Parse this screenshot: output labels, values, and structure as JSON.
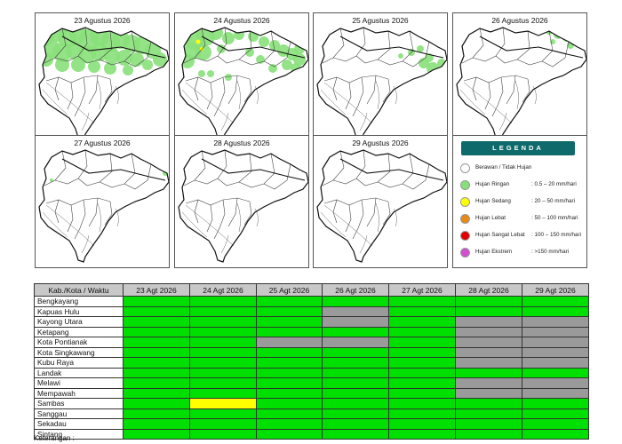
{
  "maps": [
    {
      "date": "23 Agustus 2026"
    },
    {
      "date": "24 Agustus 2026"
    },
    {
      "date": "25 Agustus 2026"
    },
    {
      "date": "26 Agustus 2026"
    },
    {
      "date": "27 Agustus 2026"
    },
    {
      "date": "28 Agustus 2026"
    },
    {
      "date": "29 Agustus 2026"
    }
  ],
  "legend": {
    "title": "LEGENDA",
    "items": [
      {
        "name": "Berawan / Tidak Hujan",
        "range": "",
        "color": "#ffffff"
      },
      {
        "name": "Hujan Ringan",
        "range": ": 0.5 – 20 mm/hari",
        "color": "#88e07a"
      },
      {
        "name": "Hujan Sedang",
        "range": ": 20 – 50 mm/hari",
        "color": "#ffff00"
      },
      {
        "name": "Hujan Lebat",
        "range": ": 50 – 100 mm/hari",
        "color": "#e88a1a"
      },
      {
        "name": "Hujan Sangat Lebat",
        "range": ": 100 – 150 mm/hari",
        "color": "#e00000"
      },
      {
        "name": "Hujan Ekstrem",
        "range": ": >150 mm/hari",
        "color": "#d24fd2"
      }
    ]
  },
  "table": {
    "header": "Kab./Kota / Waktu",
    "dates": [
      "23 Agt 2026",
      "24 Agt 2026",
      "25 Agt 2026",
      "26 Agt 2026",
      "27 Agt 2026",
      "28 Agt 2026",
      "29 Agt 2026"
    ],
    "colors": {
      "G": "#00e000",
      "X": "#9a9a9a",
      "Y": "#ffff00"
    },
    "rows": [
      {
        "name": "Bengkayang",
        "cells": [
          "G",
          "G",
          "G",
          "G",
          "G",
          "G",
          "G"
        ]
      },
      {
        "name": "Kapuas Hulu",
        "cells": [
          "G",
          "G",
          "G",
          "X",
          "G",
          "G",
          "G"
        ]
      },
      {
        "name": "Kayong Utara",
        "cells": [
          "G",
          "G",
          "G",
          "X",
          "G",
          "X",
          "X"
        ]
      },
      {
        "name": "Ketapang",
        "cells": [
          "G",
          "G",
          "G",
          "G",
          "G",
          "X",
          "X"
        ]
      },
      {
        "name": "Kota Pontianak",
        "cells": [
          "G",
          "G",
          "X",
          "X",
          "G",
          "X",
          "X"
        ]
      },
      {
        "name": "Kota Singkawang",
        "cells": [
          "G",
          "G",
          "G",
          "G",
          "G",
          "X",
          "X"
        ]
      },
      {
        "name": "Kubu Raya",
        "cells": [
          "G",
          "G",
          "G",
          "G",
          "G",
          "X",
          "X"
        ]
      },
      {
        "name": "Landak",
        "cells": [
          "G",
          "G",
          "G",
          "G",
          "G",
          "G",
          "G"
        ]
      },
      {
        "name": "Melawi",
        "cells": [
          "G",
          "G",
          "G",
          "G",
          "G",
          "X",
          "X"
        ]
      },
      {
        "name": "Mempawah",
        "cells": [
          "G",
          "G",
          "G",
          "G",
          "G",
          "X",
          "X"
        ]
      },
      {
        "name": "Sambas",
        "cells": [
          "G",
          "Y",
          "G",
          "G",
          "G",
          "G",
          "G"
        ]
      },
      {
        "name": "Sanggau",
        "cells": [
          "G",
          "G",
          "G",
          "G",
          "G",
          "G",
          "G"
        ]
      },
      {
        "name": "Sekadau",
        "cells": [
          "G",
          "G",
          "G",
          "G",
          "G",
          "G",
          "G"
        ]
      },
      {
        "name": "Sintang",
        "cells": [
          "G",
          "G",
          "G",
          "G",
          "G",
          "G",
          "G"
        ]
      }
    ]
  },
  "footnote": "Keterangan :"
}
